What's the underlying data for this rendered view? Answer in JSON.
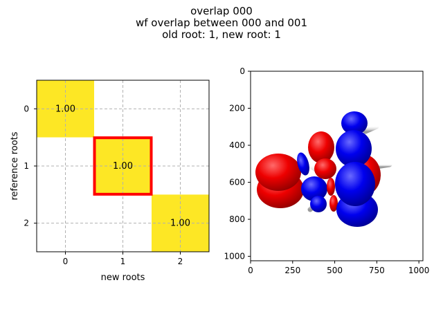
{
  "figure": {
    "title_lines": [
      "overlap 000",
      "wf overlap between 000 and 001",
      "old root: 1, new root: 1"
    ]
  },
  "chart_data": [
    {
      "type": "heatmap",
      "title": "",
      "xlabel": "new roots",
      "ylabel": "reference roots",
      "x_categories": [
        "0",
        "1",
        "2"
      ],
      "y_categories": [
        "0",
        "1",
        "2"
      ],
      "values": [
        [
          1.0,
          0.0,
          0.0
        ],
        [
          0.0,
          1.0,
          0.0
        ],
        [
          0.0,
          0.0,
          1.0
        ]
      ],
      "annotations": [
        "1.00",
        "1.00",
        "1.00"
      ],
      "highlight_cell": {
        "row": 1,
        "col": 1
      },
      "grid": true,
      "colors": {
        "high": "#fde725",
        "low": "#ffffff",
        "highlight": "#ff0000",
        "grid": "#b0b0b0"
      }
    },
    {
      "type": "image",
      "title": "",
      "xlabel": "",
      "ylabel": "",
      "x_ticks": [
        "0",
        "250",
        "500",
        "750",
        "1000"
      ],
      "y_ticks": [
        "0",
        "200",
        "400",
        "600",
        "800",
        "1000"
      ],
      "xlim": [
        0,
        1024
      ],
      "ylim": [
        1024,
        0
      ],
      "content": "molecular orbital rendering",
      "colors": {
        "positive_lobe": "#ff0000",
        "negative_lobe": "#0000ff",
        "bonds": "#e8e8e8"
      }
    }
  ]
}
